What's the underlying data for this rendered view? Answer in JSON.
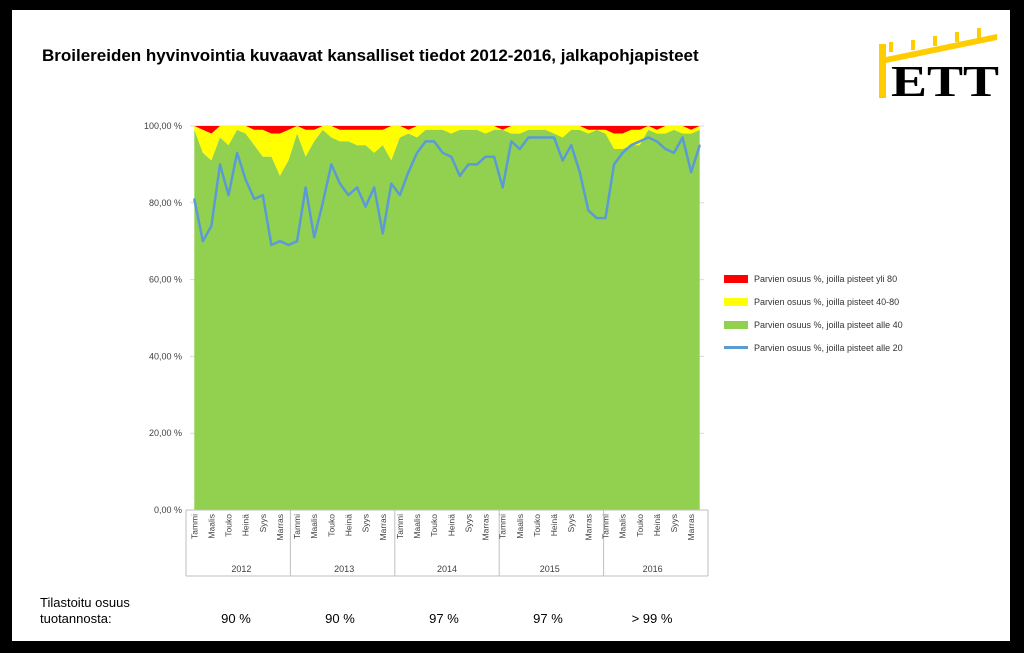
{
  "title": "Broilereiden hyvinvointia kuvaavat kansalliset tiedot 2012-2016, jalkapohjapisteet",
  "logo": {
    "text": "ETT"
  },
  "colors": {
    "red": "#ff0000",
    "yellow": "#ffff00",
    "green": "#92d050",
    "blue": "#5b9bd5"
  },
  "chart_data": {
    "type": "area",
    "title": "",
    "ylim": [
      0,
      100
    ],
    "y_ticks": [
      "0,00 %",
      "20,00 %",
      "40,00 %",
      "60,00 %",
      "80,00 %",
      "100,00 %"
    ],
    "x_month_labels": [
      "Tammi",
      "Maalis",
      "Touko",
      "Heinä",
      "Syys",
      "Marras"
    ],
    "years": [
      "2012",
      "2013",
      "2014",
      "2015",
      "2016"
    ],
    "months_per_year": 12,
    "series": [
      {
        "name": "Parvien osuus %, joilla pisteet yli 80",
        "kind": "stacked-area",
        "color": "#ff0000"
      },
      {
        "name": "Parvien osuus %, joilla pisteet 40-80",
        "kind": "stacked-area",
        "color": "#ffff00"
      },
      {
        "name": "Parvien osuus %, joilla pisteet alle 40",
        "kind": "stacked-area",
        "color": "#92d050"
      },
      {
        "name": "Parvien osuus %, joilla pisteet alle 20",
        "kind": "line",
        "color": "#5b9bd5"
      }
    ],
    "alle40_cumulative": [
      99,
      93,
      91,
      97,
      95,
      99,
      98,
      95,
      92,
      92,
      87,
      91,
      98,
      92,
      96,
      99,
      97,
      96,
      96,
      95,
      95,
      93,
      95,
      91,
      97,
      98,
      97,
      99,
      99,
      99,
      98,
      99,
      99,
      99,
      98,
      99,
      99,
      98,
      98,
      99,
      99,
      99,
      98,
      97,
      99,
      99,
      98,
      99,
      98,
      94,
      94,
      95,
      95,
      99,
      98,
      98,
      99,
      98,
      98,
      99
    ],
    "yli40_cumulative": [
      100,
      99,
      98,
      100,
      100,
      100,
      100,
      99,
      99,
      98,
      98,
      99,
      100,
      99,
      99,
      100,
      100,
      99,
      99,
      99,
      99,
      99,
      99,
      100,
      100,
      99,
      100,
      100,
      100,
      100,
      100,
      100,
      100,
      100,
      100,
      100,
      99,
      100,
      100,
      100,
      100,
      100,
      100,
      100,
      100,
      100,
      99,
      99,
      99,
      98,
      98,
      99,
      99,
      100,
      99,
      100,
      100,
      100,
      99,
      100
    ],
    "alle20": [
      81,
      70,
      74,
      90,
      82,
      93,
      86,
      81,
      82,
      69,
      70,
      69,
      70,
      84,
      71,
      80,
      90,
      85,
      82,
      84,
      79,
      84,
      72,
      85,
      82,
      88,
      93,
      96,
      96,
      93,
      92,
      87,
      90,
      90,
      92,
      92,
      84,
      96,
      94,
      97,
      97,
      97,
      97,
      91,
      95,
      88,
      78,
      76,
      76,
      90,
      93,
      95,
      96,
      97,
      96,
      94,
      93,
      97,
      88,
      95
    ]
  },
  "stats": {
    "label": "Tilastoitu osuus tuotannosta:",
    "values": [
      "90 %",
      "90 %",
      "97 %",
      "97 %",
      "> 99 %"
    ]
  }
}
